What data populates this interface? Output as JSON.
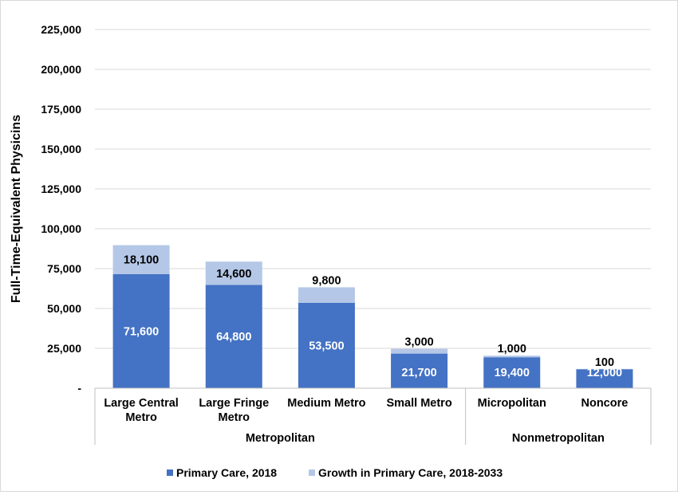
{
  "chart_data": {
    "type": "bar",
    "stacked": true,
    "title": "",
    "xlabel": "",
    "ylabel": "Full-Time-Equivalent Physicins",
    "ylim": [
      0,
      225000
    ],
    "yticks": [
      0,
      25000,
      50000,
      75000,
      100000,
      125000,
      150000,
      175000,
      200000,
      225000
    ],
    "ytick_labels": [
      "-",
      "25,000",
      "50,000",
      "75,000",
      "100,000",
      "125,000",
      "150,000",
      "175,000",
      "200,000",
      "225,000"
    ],
    "grid": true,
    "legend_position": "bottom",
    "categories": [
      [
        "Large Central",
        "Metro"
      ],
      [
        "Large Fringe",
        "Metro"
      ],
      [
        "Medium Metro"
      ],
      [
        "Small Metro"
      ],
      [
        "Micropolitan"
      ],
      [
        "Noncore"
      ]
    ],
    "groups": [
      {
        "label": "Metropolitan",
        "count": 4
      },
      {
        "label": "Nonmetropolitan",
        "count": 2
      }
    ],
    "series": [
      {
        "name": "Primary Care, 2018",
        "color": "#4472c4",
        "values": [
          71600,
          64800,
          53500,
          21700,
          19400,
          12000
        ],
        "labels": [
          "71,600",
          "64,800",
          "53,500",
          "21,700",
          "19,400",
          "12,000"
        ]
      },
      {
        "name": "Growth in Primary Care, 2018-2033",
        "color": "#b4c7e7",
        "values": [
          18100,
          14600,
          9800,
          3000,
          1000,
          100
        ],
        "labels": [
          "18,100",
          "14,600",
          "9,800",
          "3,000",
          "1,000",
          "100"
        ]
      }
    ]
  }
}
